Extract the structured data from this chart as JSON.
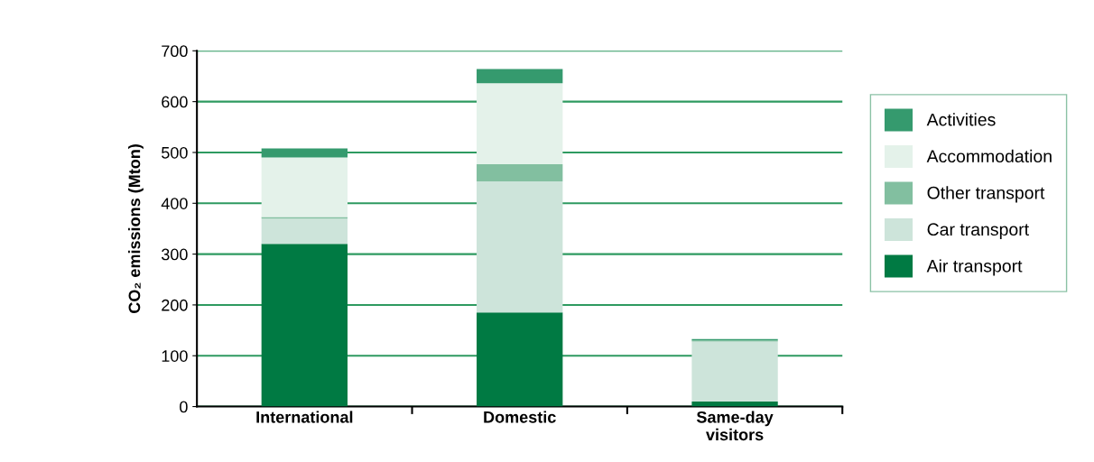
{
  "chart_data": {
    "type": "bar",
    "stacked": true,
    "ylabel": "CO₂ emissions (Mton)",
    "categories": [
      "International",
      "Domestic",
      "Same-day\nvisitors"
    ],
    "series": [
      {
        "name": "Air transport",
        "color": "#007a43",
        "values": [
          320,
          185,
          10
        ]
      },
      {
        "name": "Car transport",
        "color": "#cde4da",
        "values": [
          50,
          258,
          118
        ]
      },
      {
        "name": "Other transport",
        "color": "#82bfa0",
        "values": [
          3,
          34,
          2
        ]
      },
      {
        "name": "Accommodation",
        "color": "#e4f2ea",
        "values": [
          117,
          159,
          null
        ]
      },
      {
        "name": "Activities",
        "color": "#359a6e",
        "values": [
          18,
          28,
          3
        ]
      }
    ],
    "ylim": [
      0,
      700
    ],
    "yticks": [
      0,
      100,
      200,
      300,
      400,
      500,
      600,
      700
    ],
    "grid": "y",
    "legend": "right"
  }
}
